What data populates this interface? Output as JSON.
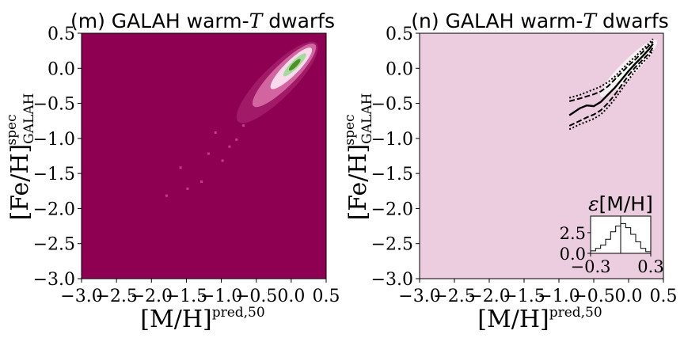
{
  "colors": {
    "background_left": "#8e0152",
    "background_right": "#ecccdf",
    "axis": "#000000",
    "density_mid": "#de77ae",
    "density_high": "#fde0ef",
    "density_peak": "#4d9221"
  },
  "chart_data": [
    {
      "type": "heatmap",
      "title_prefix": "(m) GALAH warm-",
      "title_italic": "T",
      "title_suffix": " dwarfs",
      "xlabel_main": "[M/H]",
      "xlabel_sup": "pred,50",
      "ylabel_main": "[Fe/H]",
      "ylabel_sup": "spec",
      "ylabel_sub": "GALAH",
      "xlim": [
        -3.0,
        0.5
      ],
      "ylim": [
        -3.0,
        0.5
      ],
      "xticks": [
        -3.0,
        -2.5,
        -2.0,
        -1.5,
        -1.0,
        -0.5,
        0.0,
        0.5
      ],
      "yticks": [
        -3.0,
        -2.5,
        -2.0,
        -1.5,
        -1.0,
        -0.5,
        0.0,
        0.5
      ],
      "xtick_labels": [
        "−3.0",
        "−2.5",
        "−2.0",
        "−1.5",
        "−1.0",
        "−0.5",
        "0.0",
        "0.5"
      ],
      "ytick_labels": [
        "−3.0",
        "−2.5",
        "−2.0",
        "−1.5",
        "−1.0",
        "−0.5",
        "0.0",
        "0.5"
      ],
      "density_ridge": [
        {
          "x": -0.6,
          "y": -0.6,
          "level": 0.2
        },
        {
          "x": -0.4,
          "y": -0.4,
          "level": 0.45
        },
        {
          "x": -0.2,
          "y": -0.2,
          "level": 0.7
        },
        {
          "x": 0.0,
          "y": 0.0,
          "level": 1.0
        },
        {
          "x": 0.15,
          "y": 0.15,
          "level": 0.85
        },
        {
          "x": 0.3,
          "y": 0.35,
          "level": 0.5
        }
      ]
    },
    {
      "type": "line",
      "title_prefix": "(n) GALAH warm-",
      "title_italic": "T",
      "title_suffix": " dwarfs",
      "xlabel_main": "[M/H]",
      "xlabel_sup": "pred,50",
      "ylabel_main": "[Fe/H]",
      "ylabel_sup": "spec",
      "ylabel_sub": "GALAH",
      "xlim": [
        -3.0,
        0.5
      ],
      "ylim": [
        -3.0,
        0.5
      ],
      "xticks": [
        -3.0,
        -2.5,
        -2.0,
        -1.5,
        -1.0,
        -0.5,
        0.0,
        0.5
      ],
      "yticks": [
        -3.0,
        -2.5,
        -2.0,
        -1.5,
        -1.0,
        -0.5,
        0.0,
        0.5
      ],
      "xtick_labels": [
        "−3.0",
        "−2.5",
        "−2.0",
        "−1.5",
        "−1.0",
        "−0.5",
        "0.0",
        "0.5"
      ],
      "ytick_labels": [
        "−3.0",
        "−2.5",
        "−2.0",
        "−1.5",
        "−1.0",
        "−0.5",
        "0.0",
        "0.5"
      ],
      "series": [
        {
          "style": "solid",
          "x": [
            -0.85,
            -0.7,
            -0.6,
            -0.5,
            -0.4,
            -0.3,
            -0.2,
            -0.1,
            0.0,
            0.1,
            0.2,
            0.3,
            0.35
          ],
          "y": [
            -0.67,
            -0.57,
            -0.53,
            -0.54,
            -0.48,
            -0.38,
            -0.28,
            -0.16,
            -0.04,
            0.07,
            0.17,
            0.28,
            0.35
          ]
        },
        {
          "style": "dashed",
          "x": [
            -0.85,
            -0.7,
            -0.6,
            -0.5,
            -0.4,
            -0.3,
            -0.2,
            -0.1,
            0.0,
            0.1,
            0.2,
            0.3,
            0.35
          ],
          "y": [
            -0.47,
            -0.43,
            -0.4,
            -0.37,
            -0.33,
            -0.26,
            -0.16,
            -0.06,
            0.04,
            0.13,
            0.23,
            0.33,
            0.38
          ]
        },
        {
          "style": "dashed",
          "x": [
            -0.85,
            -0.7,
            -0.6,
            -0.5,
            -0.4,
            -0.3,
            -0.2,
            -0.1,
            0.0,
            0.1,
            0.2,
            0.3,
            0.35
          ],
          "y": [
            -0.82,
            -0.75,
            -0.7,
            -0.66,
            -0.6,
            -0.5,
            -0.38,
            -0.24,
            -0.1,
            0.02,
            0.12,
            0.22,
            0.3
          ]
        },
        {
          "style": "dotted",
          "x": [
            -0.85,
            -0.7,
            -0.6,
            -0.5,
            -0.4,
            -0.3,
            -0.2,
            -0.1,
            0.0,
            0.1,
            0.2,
            0.3,
            0.35
          ],
          "y": [
            -0.42,
            -0.38,
            -0.34,
            -0.3,
            -0.26,
            -0.2,
            -0.12,
            -0.02,
            0.08,
            0.17,
            0.27,
            0.36,
            0.42
          ]
        },
        {
          "style": "dotted",
          "x": [
            -0.85,
            -0.7,
            -0.6,
            -0.5,
            -0.4,
            -0.3,
            -0.2,
            -0.1,
            0.0,
            0.1,
            0.2,
            0.3,
            0.35
          ],
          "y": [
            -0.87,
            -0.8,
            -0.76,
            -0.72,
            -0.66,
            -0.56,
            -0.44,
            -0.3,
            -0.16,
            -0.03,
            0.08,
            0.18,
            0.26
          ]
        }
      ],
      "inset": {
        "type": "histogram",
        "title_symbol": "ε",
        "title_text": "[M/H]",
        "xlim": [
          -0.3,
          0.3
        ],
        "ylim": [
          0.0,
          4.5
        ],
        "xticks": [
          -0.3,
          0.3
        ],
        "yticks": [
          0.0,
          2.5
        ],
        "xtick_labels": [
          "−0.3",
          "0.3"
        ],
        "ytick_labels": [
          "0.0",
          "2.5"
        ],
        "bin_edges": [
          -0.3,
          -0.25,
          -0.2,
          -0.15,
          -0.1,
          -0.05,
          0.0,
          0.05,
          0.1,
          0.15,
          0.2,
          0.25,
          0.3
        ],
        "counts": [
          0.3,
          0.6,
          1.0,
          1.7,
          2.6,
          3.3,
          3.6,
          3.1,
          2.3,
          1.4,
          0.6,
          0.2
        ],
        "median_line": 0.0
      }
    }
  ]
}
